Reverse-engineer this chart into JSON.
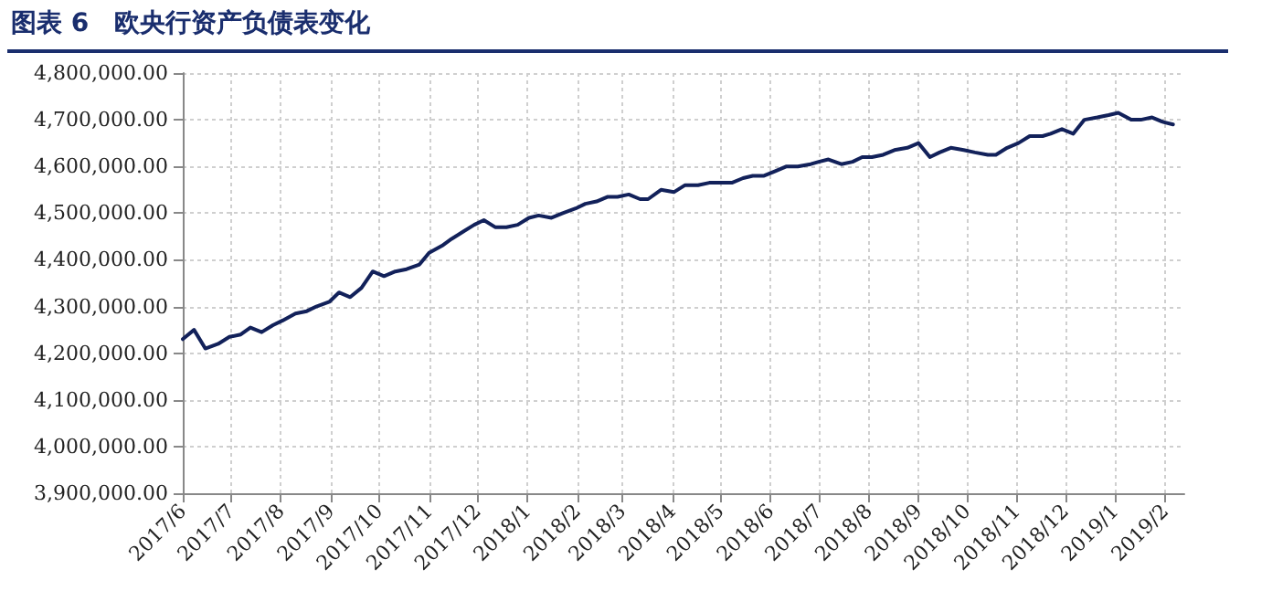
{
  "chart_data": {
    "type": "line",
    "title": "图表 6　欧央行资产负债表变化",
    "x": [
      "2017-06-01",
      "2017-06-08",
      "2017-06-15",
      "2017-06-23",
      "2017-06-30",
      "2017-07-07",
      "2017-07-13",
      "2017-07-20",
      "2017-07-27",
      "2017-08-02",
      "2017-08-10",
      "2017-08-17",
      "2017-08-23",
      "2017-08-31",
      "2017-09-06",
      "2017-09-13",
      "2017-09-20",
      "2017-09-27",
      "2017-10-04",
      "2017-10-11",
      "2017-10-18",
      "2017-10-26",
      "2017-11-01",
      "2017-11-09",
      "2017-11-15",
      "2017-11-22",
      "2017-11-29",
      "2017-12-05",
      "2017-12-12",
      "2017-12-19",
      "2017-12-26",
      "2018-01-02",
      "2018-01-08",
      "2018-01-16",
      "2018-01-23",
      "2018-01-31",
      "2018-02-06",
      "2018-02-13",
      "2018-02-20",
      "2018-02-26",
      "2018-03-05",
      "2018-03-12",
      "2018-03-17",
      "2018-03-25",
      "2018-04-02",
      "2018-04-09",
      "2018-04-17",
      "2018-04-24",
      "2018-05-08",
      "2018-05-15",
      "2018-05-21",
      "2018-05-28",
      "2018-06-04",
      "2018-06-11",
      "2018-06-18",
      "2018-06-26",
      "2018-07-01",
      "2018-07-07",
      "2018-07-15",
      "2018-07-22",
      "2018-07-28",
      "2018-08-03",
      "2018-08-10",
      "2018-08-17",
      "2018-08-25",
      "2018-09-01",
      "2018-09-08",
      "2018-09-14",
      "2018-09-21",
      "2018-09-29",
      "2018-10-06",
      "2018-10-14",
      "2018-10-19",
      "2018-10-26",
      "2018-11-02",
      "2018-11-09",
      "2018-11-17",
      "2018-11-22",
      "2018-11-29",
      "2018-12-06",
      "2018-12-13",
      "2018-12-21",
      "2018-12-28",
      "2019-01-03",
      "2019-01-11",
      "2019-01-17",
      "2019-01-24",
      "2019-01-31",
      "2019-02-06"
    ],
    "series": [
      {
        "color": "#12215a",
        "values": [
          4230000,
          4250000,
          4210000,
          4220000,
          4235000,
          4240000,
          4255000,
          4245000,
          4260000,
          4270000,
          4285000,
          4290000,
          4300000,
          4310000,
          4330000,
          4320000,
          4340000,
          4375000,
          4365000,
          4375000,
          4380000,
          4390000,
          4415000,
          4430000,
          4445000,
          4460000,
          4475000,
          4485000,
          4470000,
          4470000,
          4475000,
          4490000,
          4495000,
          4490000,
          4500000,
          4510000,
          4520000,
          4525000,
          4535000,
          4535000,
          4540000,
          4530000,
          4530000,
          4550000,
          4545000,
          4560000,
          4560000,
          4565000,
          4565000,
          4575000,
          4580000,
          4580000,
          4590000,
          4600000,
          4600000,
          4605000,
          4610000,
          4615000,
          4605000,
          4610000,
          4620000,
          4620000,
          4625000,
          4635000,
          4640000,
          4650000,
          4620000,
          4630000,
          4640000,
          4635000,
          4630000,
          4625000,
          4625000,
          4640000,
          4650000,
          4665000,
          4665000,
          4670000,
          4680000,
          4670000,
          4700000,
          4705000,
          4710000,
          4715000,
          4700000,
          4700000,
          4705000,
          4695000,
          4690000
        ]
      }
    ],
    "xlim": [
      "2017-06-01",
      "2019-02-13"
    ],
    "xticks": [
      {
        "value": "2017-06",
        "label": "2017/6"
      },
      {
        "value": "2017-07",
        "label": "2017/7"
      },
      {
        "value": "2017-08",
        "label": "2017/8"
      },
      {
        "value": "2017-09",
        "label": "2017/9"
      },
      {
        "value": "2017-10",
        "label": "2017/10"
      },
      {
        "value": "2017-11",
        "label": "2017/11"
      },
      {
        "value": "2017-12",
        "label": "2017/12"
      },
      {
        "value": "2018-01",
        "label": "2018/1"
      },
      {
        "value": "2018-02",
        "label": "2018/2"
      },
      {
        "value": "2018-03",
        "label": "2018/3"
      },
      {
        "value": "2018-04",
        "label": "2018/4"
      },
      {
        "value": "2018-05",
        "label": "2018/5"
      },
      {
        "value": "2018-06",
        "label": "2018/6"
      },
      {
        "value": "2018-07",
        "label": "2018/7"
      },
      {
        "value": "2018-08",
        "label": "2018/8"
      },
      {
        "value": "2018-09",
        "label": "2018/9"
      },
      {
        "value": "2018-10",
        "label": "2018/10"
      },
      {
        "value": "2018-11",
        "label": "2018/11"
      },
      {
        "value": "2018-12",
        "label": "2018/12"
      },
      {
        "value": "2019-01",
        "label": "2019/1"
      },
      {
        "value": "2019-02",
        "label": "2019/2"
      }
    ],
    "ylim": [
      3900000,
      4800000
    ],
    "yticks": [
      {
        "value": 3900000,
        "label": "3,900,000.00"
      },
      {
        "value": 4000000,
        "label": "4,000,000.00"
      },
      {
        "value": 4100000,
        "label": "4,100,000.00"
      },
      {
        "value": 4200000,
        "label": "4,200,000.00"
      },
      {
        "value": 4300000,
        "label": "4,300,000.00"
      },
      {
        "value": 4400000,
        "label": "4,400,000.00"
      },
      {
        "value": 4500000,
        "label": "4,500,000.00"
      },
      {
        "value": 4600000,
        "label": "4,600,000.00"
      },
      {
        "value": 4700000,
        "label": "4,700,000.00"
      },
      {
        "value": 4800000,
        "label": "4,800,000.00"
      }
    ],
    "grid": true,
    "marker": "none",
    "line_style": "solid"
  }
}
